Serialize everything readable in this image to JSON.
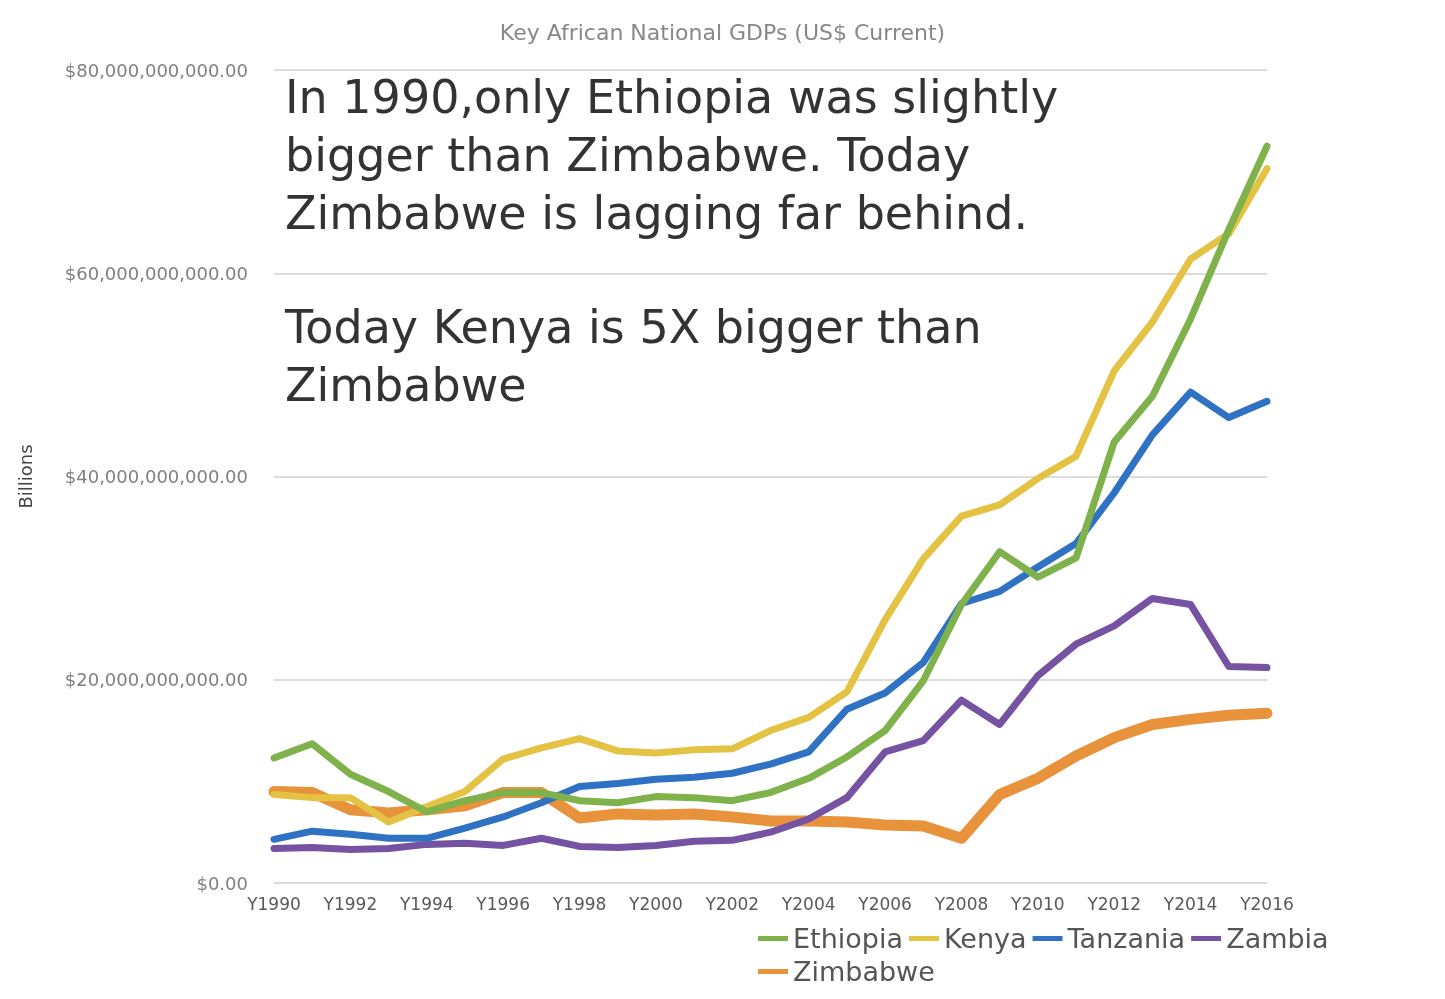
{
  "chart_data": {
    "type": "line",
    "title": "Key African National GDPs (US$ Current)",
    "ylabel": "Billions",
    "categories": [
      "Y1990",
      null,
      "Y1992",
      null,
      "Y1994",
      null,
      "Y1996",
      null,
      "Y1998",
      null,
      "Y2000",
      null,
      "Y2002",
      null,
      "Y2004",
      null,
      "Y2006",
      null,
      "Y2008",
      null,
      "Y2010",
      null,
      "Y2012",
      null,
      "Y2014",
      null,
      "Y2016"
    ],
    "series": [
      {
        "name": "Ethiopia",
        "color": "#7fb24a",
        "values": [
          12300000000,
          13700000000,
          10700000000,
          9000000000,
          7000000000,
          8100000000,
          8900000000,
          8900000000,
          8100000000,
          7900000000,
          8500000000,
          8400000000,
          8100000000,
          8900000000,
          10300000000,
          12400000000,
          15000000000,
          19900000000,
          27400000000,
          32600000000,
          30100000000,
          32000000000,
          43400000000,
          47900000000,
          55500000000,
          64300000000,
          72500000000
        ]
      },
      {
        "name": "Kenya",
        "color": "#e4c243",
        "values": [
          8700000000,
          8400000000,
          8400000000,
          6000000000,
          7500000000,
          9000000000,
          12200000000,
          13300000000,
          14200000000,
          13000000000,
          12800000000,
          13100000000,
          13200000000,
          15000000000,
          16300000000,
          18800000000,
          25900000000,
          31900000000,
          36100000000,
          37200000000,
          39800000000,
          42000000000,
          50400000000,
          55200000000,
          61400000000,
          63900000000,
          70300000000
        ]
      },
      {
        "name": "Tanzania",
        "color": "#2f72c4",
        "values": [
          4300000000,
          5100000000,
          4800000000,
          4400000000,
          4400000000,
          5400000000,
          6500000000,
          7900000000,
          9500000000,
          9800000000,
          10200000000,
          10400000000,
          10800000000,
          11700000000,
          12900000000,
          17100000000,
          18700000000,
          21700000000,
          27500000000,
          28700000000,
          31100000000,
          33400000000,
          38400000000,
          44100000000,
          48300000000,
          45800000000,
          47400000000
        ]
      },
      {
        "name": "Zambia",
        "color": "#7652a3",
        "values": [
          3400000000,
          3500000000,
          3300000000,
          3400000000,
          3800000000,
          3900000000,
          3700000000,
          4400000000,
          3600000000,
          3500000000,
          3700000000,
          4100000000,
          4200000000,
          5000000000,
          6300000000,
          8400000000,
          12900000000,
          14000000000,
          18000000000,
          15600000000,
          20400000000,
          23500000000,
          25300000000,
          28000000000,
          27400000000,
          21300000000,
          21200000000
        ]
      },
      {
        "name": "Zimbabwe",
        "color": "#e8923b",
        "values": [
          9000000000,
          8900000000,
          7200000000,
          6900000000,
          7200000000,
          7600000000,
          8900000000,
          8900000000,
          6400000000,
          6800000000,
          6700000000,
          6800000000,
          6500000000,
          6100000000,
          6100000000,
          6000000000,
          5700000000,
          5600000000,
          4400000000,
          8700000000,
          10300000000,
          12500000000,
          14300000000,
          15600000000,
          16100000000,
          16500000000,
          16700000000
        ]
      }
    ],
    "ylim": [
      0,
      80000000000
    ],
    "yticks": [
      {
        "value": 0,
        "label": "$0.00"
      },
      {
        "value": 20000000000,
        "label": "$20,000,000,000.00"
      },
      {
        "value": 40000000000,
        "label": "$40,000,000,000.00"
      },
      {
        "value": 60000000000,
        "label": "$60,000,000,000.00"
      },
      {
        "value": 80000000000,
        "label": "$80,000,000,000.00"
      }
    ],
    "grid": "y",
    "legend": "bottom right",
    "marker": "none",
    "line_style": "solid",
    "annotations": [
      "In 1990,only Ethiopia was slightly\nbigger than Zimbabwe. Today\nZimbabwe is lagging far behind.",
      "Today Kenya is 5X bigger than\nZimbabwe"
    ]
  }
}
